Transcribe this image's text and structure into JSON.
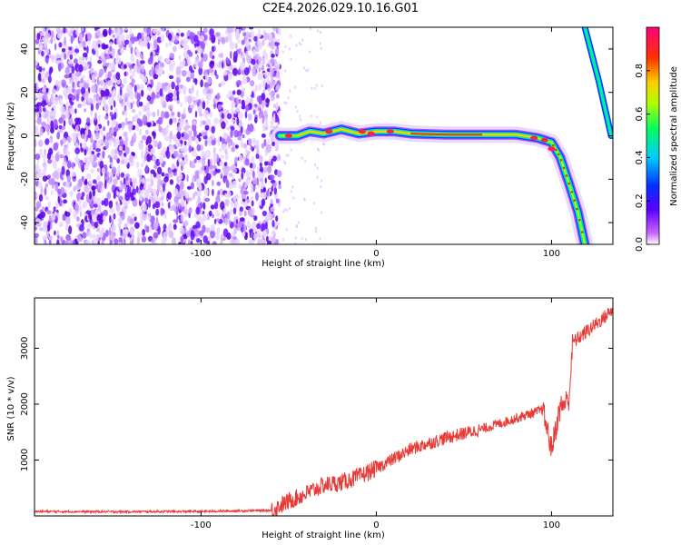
{
  "title": "C2E4.2026.029.10.16.G01",
  "chart_data": [
    {
      "type": "heatmap",
      "xlabel": "Height of straight line (km)",
      "ylabel": "Frequency (Hz)",
      "xlim": [
        -195,
        135
      ],
      "ylim": [
        -50,
        50
      ],
      "x_ticks": [
        -100,
        0,
        100
      ],
      "y_ticks": [
        -40,
        -20,
        0,
        20,
        40
      ],
      "colorbar": {
        "label": "Normalized spectral amplitude",
        "range": [
          0,
          1
        ],
        "ticks": [
          0.0,
          0.2,
          0.4,
          0.6,
          0.8
        ],
        "tick_labels": [
          "0.0",
          "0.2",
          "0.4",
          "0.6",
          "0.8"
        ],
        "colors": [
          "#ffffff",
          "#cc66ff",
          "#5a00ff",
          "#0030ff",
          "#00ccff",
          "#00ff60",
          "#b0ff00",
          "#ffcc00",
          "#ff3000",
          "#ff0080"
        ]
      },
      "features": {
        "noise_region_x": [
          -195,
          -55
        ],
        "carrier_trace": [
          [
            -55,
            0
          ],
          [
            -45,
            0
          ],
          [
            -38,
            2
          ],
          [
            -30,
            1
          ],
          [
            -20,
            3
          ],
          [
            -10,
            1
          ],
          [
            0,
            2
          ],
          [
            10,
            2
          ],
          [
            20,
            1
          ],
          [
            40,
            0.5
          ],
          [
            60,
            0.5
          ],
          [
            80,
            0.5
          ],
          [
            92,
            -1
          ],
          [
            100,
            -3
          ],
          [
            105,
            -10
          ],
          [
            110,
            -22
          ],
          [
            115,
            -35
          ],
          [
            119,
            -50
          ]
        ],
        "aliased_trace": [
          [
            119,
            50
          ],
          [
            127,
            25
          ],
          [
            134,
            0
          ]
        ]
      }
    },
    {
      "type": "line",
      "xlabel": "Height of straight line (km)",
      "ylabel": "SNR (10 * v/v)",
      "xlim": [
        -195,
        135
      ],
      "ylim": [
        0,
        3900
      ],
      "x_ticks": [
        -100,
        0,
        100
      ],
      "y_ticks": [
        1000,
        2000,
        3000
      ],
      "color": "#e83a36",
      "series": [
        {
          "x": [
            -195,
            -150,
            -100,
            -60,
            -50,
            -40,
            -30,
            -20,
            -10,
            0,
            20,
            40,
            60,
            80,
            95,
            100,
            105,
            110,
            112,
            120,
            130,
            135
          ],
          "values": [
            80,
            75,
            80,
            100,
            260,
            400,
            550,
            600,
            700,
            850,
            1200,
            1400,
            1550,
            1750,
            1900,
            1200,
            1950,
            2100,
            3100,
            3300,
            3550,
            3700
          ]
        }
      ]
    }
  ]
}
